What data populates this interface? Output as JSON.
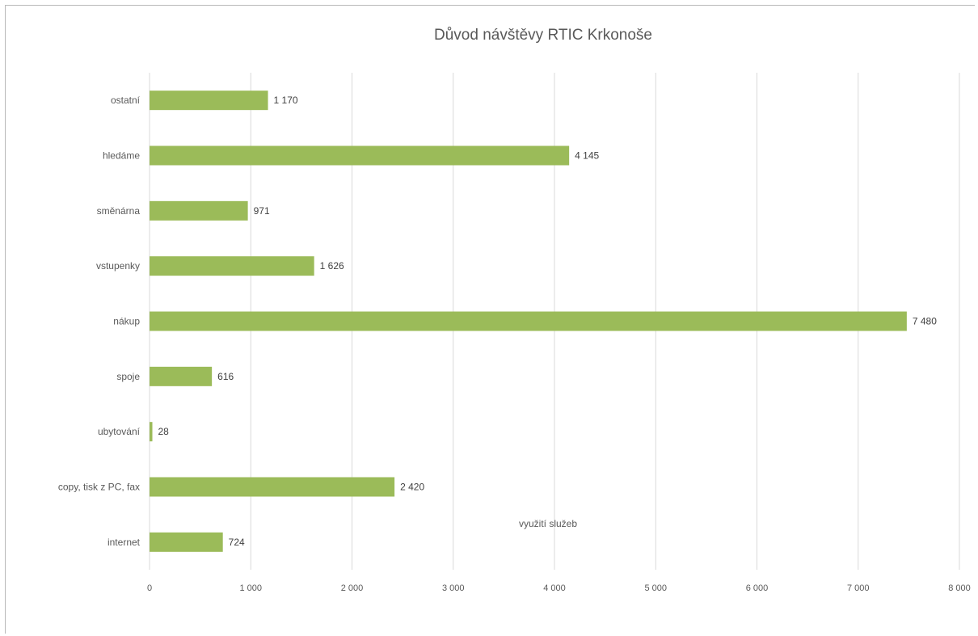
{
  "chart_data": {
    "type": "bar",
    "orientation": "horizontal",
    "title": "Důvod návštěvy RTIC Krkonoše",
    "xlabel": "využití služeb",
    "ylabel": "",
    "categories": [
      "internet",
      "copy, tisk z PC, fax",
      "ubytování",
      "spoje",
      "nákup",
      "vstupenky",
      "směnárna",
      "hledáme",
      "ostatní"
    ],
    "values": [
      724,
      2420,
      28,
      616,
      7480,
      1626,
      971,
      4145,
      1170
    ],
    "data_labels": [
      "724",
      "2 420",
      "28",
      "616",
      "7 480",
      "1 626",
      "971",
      "4 145",
      "1 170"
    ],
    "xlim": [
      0,
      8000
    ],
    "x_ticks": [
      0,
      1000,
      2000,
      3000,
      4000,
      5000,
      6000,
      7000,
      8000
    ],
    "x_tick_labels": [
      "0",
      "1 000",
      "2 000",
      "3 000",
      "4 000",
      "5 000",
      "6 000",
      "7 000",
      "8 000"
    ],
    "grid": "vertical",
    "legend": "none",
    "bar_color": "#9bbb59"
  }
}
